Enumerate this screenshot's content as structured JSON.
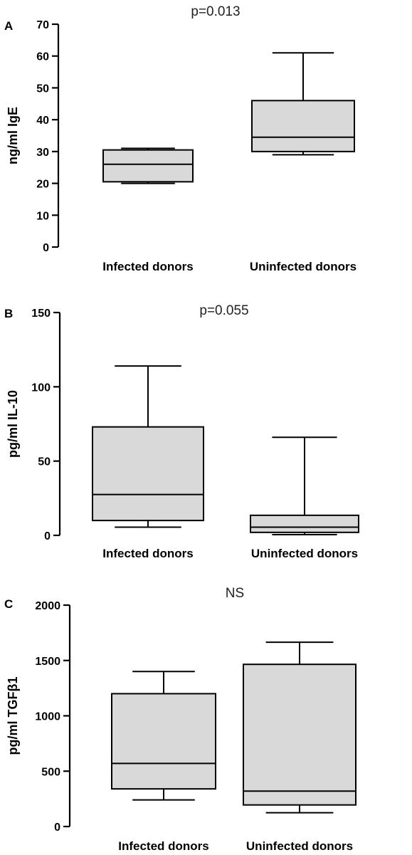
{
  "chart_data": [
    {
      "type": "box",
      "panel": "A",
      "annotation": "p=0.013",
      "ylabel": "ng/ml IgE",
      "ylim": [
        0,
        70
      ],
      "yticks": [
        0,
        10,
        20,
        30,
        40,
        50,
        60,
        70
      ],
      "categories": [
        "Infected donors",
        "Uninfected donors"
      ],
      "boxes": [
        {
          "category": "Infected donors",
          "min": 20,
          "q1": 20.5,
          "median": 26,
          "q3": 30.5,
          "max": 31
        },
        {
          "category": "Uninfected donors",
          "min": 29,
          "q1": 30,
          "median": 34.5,
          "q3": 46,
          "max": 61
        }
      ]
    },
    {
      "type": "box",
      "panel": "B",
      "annotation": "p=0.055",
      "ylabel": "pg/ml IL-10",
      "ylim": [
        0,
        150
      ],
      "yticks": [
        0,
        50,
        100,
        150
      ],
      "categories": [
        "Infected donors",
        "Uninfected donors"
      ],
      "boxes": [
        {
          "category": "Infected donors",
          "min": 5.5,
          "q1": 10,
          "median": 27.5,
          "q3": 73,
          "max": 114
        },
        {
          "category": "Uninfected donors",
          "min": 0.5,
          "q1": 2,
          "median": 5.5,
          "q3": 13.5,
          "max": 66
        }
      ]
    },
    {
      "type": "box",
      "panel": "C",
      "annotation": "NS",
      "ylabel": "pg/ml TGFβ1",
      "ylim": [
        0,
        2000
      ],
      "yticks": [
        0,
        500,
        1000,
        1500,
        2000
      ],
      "categories": [
        "Infected donors",
        "Uninfected donors"
      ],
      "boxes": [
        {
          "category": "Infected donors",
          "min": 240,
          "q1": 340,
          "median": 570,
          "q3": 1200,
          "max": 1400
        },
        {
          "category": "Uninfected donors",
          "min": 125,
          "q1": 195,
          "median": 320,
          "q3": 1465,
          "max": 1665
        }
      ]
    }
  ]
}
